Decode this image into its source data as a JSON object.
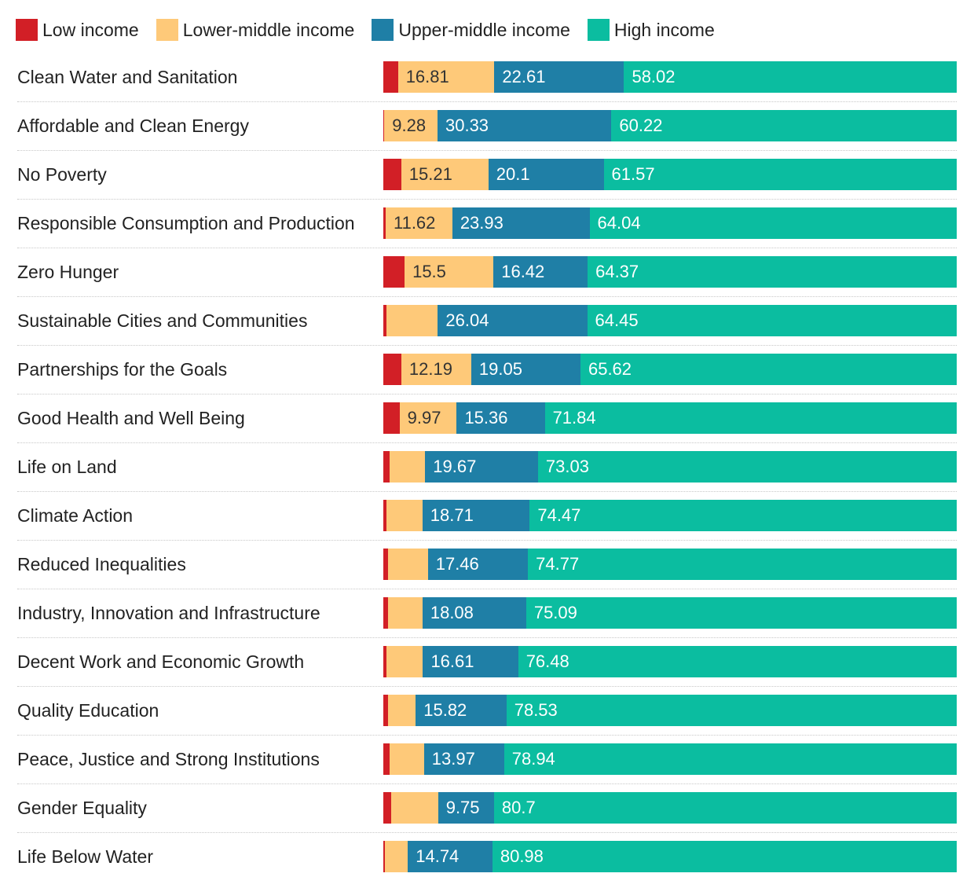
{
  "legend": [
    {
      "name": "Low income",
      "color": "#d21f26"
    },
    {
      "name": "Lower-middle income",
      "color": "#fec979"
    },
    {
      "name": "Upper-middle income",
      "color": "#1f7fa6"
    },
    {
      "name": "High income",
      "color": "#0bbda0"
    }
  ],
  "chart_data": {
    "type": "bar",
    "orientation": "horizontal",
    "stacked": true,
    "legend_position": "top-left",
    "categories": [
      "Clean Water and Sanitation",
      "Affordable and Clean Energy",
      "No Poverty",
      "Responsible Consumption and Production",
      "Zero Hunger",
      "Sustainable Cities and Communities",
      "Partnerships for the Goals",
      "Good Health and Well Being",
      "Life on Land",
      "Climate Action",
      "Reduced Inequalities",
      "Industry, Innovation and Infrastructure",
      "Decent Work and Economic Growth",
      "Quality Education",
      "Peace, Justice and Strong Institutions",
      "Gender Equality",
      "Life Below Water"
    ],
    "series": [
      {
        "name": "Low income",
        "color": "#d21f26",
        "values": [
          2.56,
          0.17,
          3.12,
          0.41,
          3.71,
          0.58,
          3.14,
          2.83,
          1.1,
          0.55,
          0.82,
          0.82,
          0.55,
          0.82,
          1.1,
          1.37,
          0.27
        ],
        "labels": [
          "",
          "",
          "",
          "",
          "",
          "",
          "",
          "",
          "",
          "",
          "",
          "",
          "",
          "",
          "",
          "",
          ""
        ]
      },
      {
        "name": "Lower-middle income",
        "color": "#fec979",
        "values": [
          16.81,
          9.28,
          15.21,
          11.62,
          15.5,
          8.93,
          12.19,
          9.97,
          6.2,
          6.27,
          6.95,
          6.01,
          6.36,
          4.83,
          5.99,
          8.18,
          4.01
        ],
        "labels": [
          "16.81",
          "9.28",
          "15.21",
          "11.62",
          "15.5",
          "",
          "12.19",
          "9.97",
          "",
          "",
          "",
          "",
          "",
          "",
          "",
          "",
          ""
        ]
      },
      {
        "name": "Upper-middle income",
        "color": "#1f7fa6",
        "values": [
          22.61,
          30.33,
          20.1,
          23.93,
          16.42,
          26.04,
          19.05,
          15.36,
          19.67,
          18.71,
          17.46,
          18.08,
          16.61,
          15.82,
          13.97,
          9.75,
          14.74
        ],
        "labels": [
          "22.61",
          "30.33",
          "20.1",
          "23.93",
          "16.42",
          "26.04",
          "19.05",
          "15.36",
          "19.67",
          "18.71",
          "17.46",
          "18.08",
          "16.61",
          "15.82",
          "13.97",
          "9.75",
          "14.74"
        ]
      },
      {
        "name": "High income",
        "color": "#0bbda0",
        "values": [
          58.02,
          60.22,
          61.57,
          64.04,
          64.37,
          64.45,
          65.62,
          71.84,
          73.03,
          74.47,
          74.77,
          75.09,
          76.48,
          78.53,
          78.94,
          80.7,
          80.98
        ],
        "labels": [
          "58.02",
          "60.22",
          "61.57",
          "64.04",
          "64.37",
          "64.45",
          "65.62",
          "71.84",
          "73.03",
          "74.47",
          "74.77",
          "75.09",
          "76.48",
          "78.53",
          "78.94",
          "80.7",
          "80.98"
        ]
      }
    ],
    "xlim": [
      0,
      100
    ]
  }
}
